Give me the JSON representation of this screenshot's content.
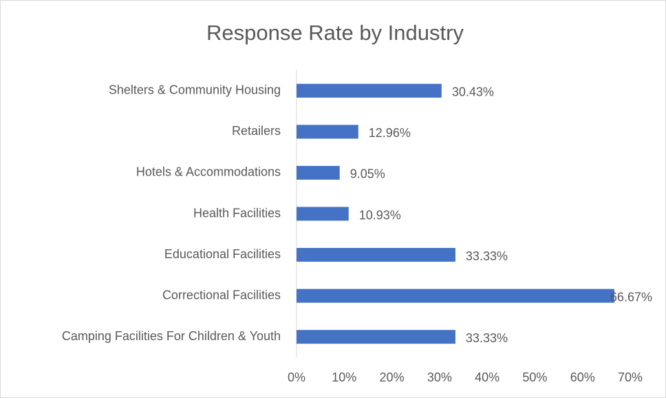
{
  "chart_data": {
    "type": "bar",
    "orientation": "horizontal",
    "title": "Response Rate by Industry",
    "categories": [
      "Shelters & Community Housing",
      "Retailers",
      "Hotels & Accommodations",
      "Health Facilities",
      "Educational Facilities",
      "Correctional Facilities",
      "Camping Facilities For Children & Youth"
    ],
    "values": [
      30.43,
      12.96,
      9.05,
      10.93,
      33.33,
      66.67,
      33.33
    ],
    "value_labels": [
      "30.43%",
      "12.96%",
      "9.05%",
      "10.93%",
      "33.33%",
      "66.67%",
      "33.33%"
    ],
    "color": "#4472c4",
    "xlim": [
      0,
      70
    ],
    "xticks": [
      {
        "value": 0,
        "label": "0%"
      },
      {
        "value": 10,
        "label": "10%"
      },
      {
        "value": 20,
        "label": "20%"
      },
      {
        "value": 30,
        "label": "30%"
      },
      {
        "value": 40,
        "label": "40%"
      },
      {
        "value": 50,
        "label": "50%"
      },
      {
        "value": 60,
        "label": "60%"
      },
      {
        "value": 70,
        "label": "70%"
      }
    ],
    "grid": false
  }
}
